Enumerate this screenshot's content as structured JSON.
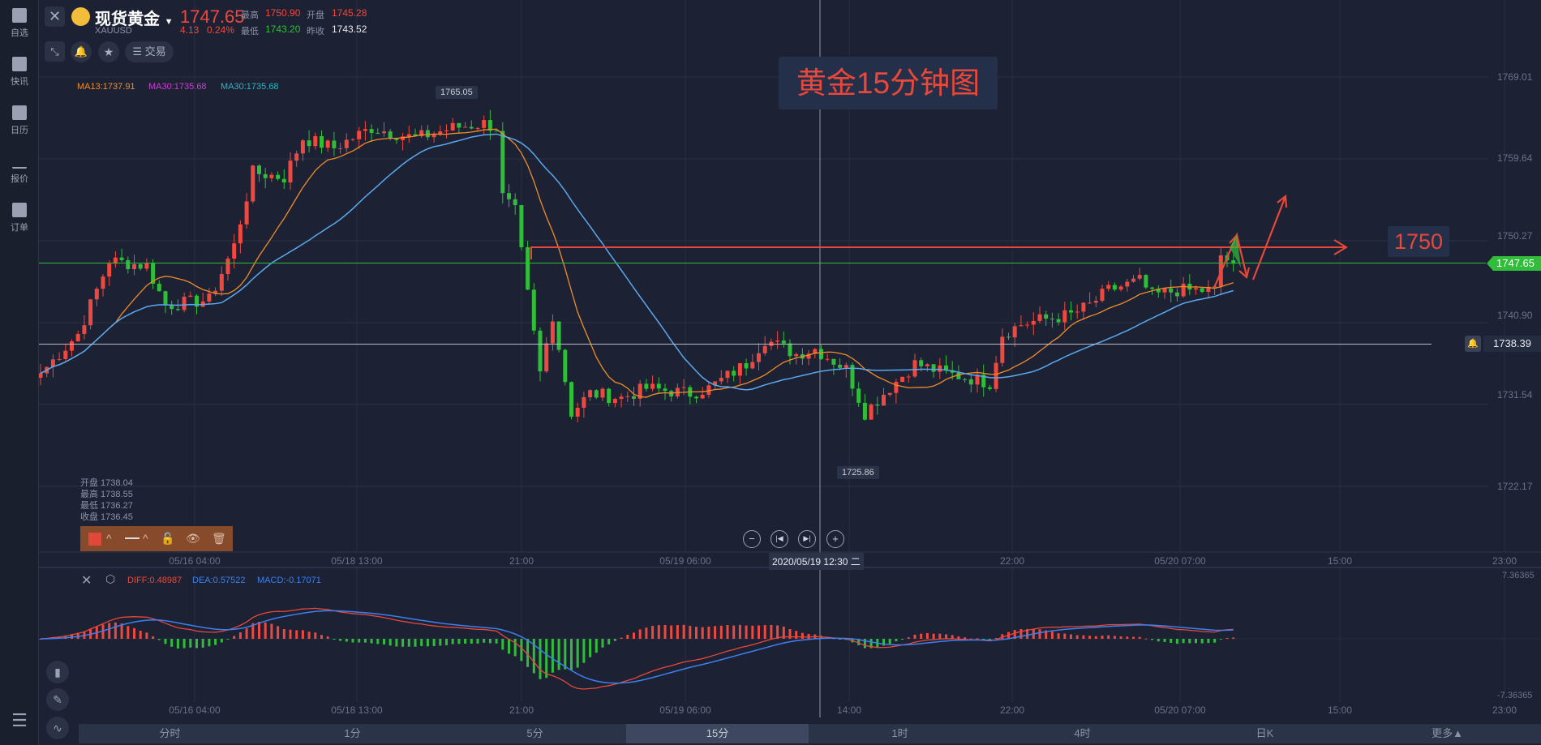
{
  "sidebar": {
    "items": [
      {
        "label": "自选",
        "icon": "bookmark-plus-icon"
      },
      {
        "label": "快讯",
        "icon": "news-list-icon"
      },
      {
        "label": "日历",
        "icon": "calendar-icon"
      },
      {
        "label": "报价",
        "icon": "chart-line-icon"
      },
      {
        "label": "订单",
        "icon": "clipboard-icon"
      }
    ]
  },
  "header": {
    "name": "现货黄金",
    "symbol": "XAUUSD",
    "price": "1747.65",
    "change": "4.13",
    "change_pct": "0.24%",
    "high_label": "最高",
    "high": "1750.90",
    "open_label": "开盘",
    "open": "1745.28",
    "low_label": "最低",
    "low": "1743.20",
    "prev_label": "昨收",
    "prev": "1743.52",
    "trade_label": "交易"
  },
  "ma": {
    "ma13": "MA13:1737.91",
    "ma30a": "MA30:1735.68",
    "ma30b": "MA30:1735.68"
  },
  "annotation": {
    "title": "黄金15分钟图",
    "level": "1750"
  },
  "labels": {
    "max": "1765.05",
    "min": "1725.86"
  },
  "y_axis": [
    "1769.01",
    "1759.64",
    "1750.27",
    "1740.90",
    "1731.54",
    "1722.17"
  ],
  "current_price": "1747.65",
  "alert_price": "1738.39",
  "ohlc": {
    "open": "开盘 1738.04",
    "high": "最高 1738.55",
    "low": "最低 1736.27",
    "close": "收盘 1736.45"
  },
  "time_axis": [
    "05/16 04:00",
    "05/18 13:00",
    "21:00",
    "05/19 06:00",
    "22:00",
    "05/20 07:00",
    "15:00",
    "23:00"
  ],
  "crosshair_time": "2020/05/19 12:30 二",
  "macd": {
    "diff": "DIFF:0.48987",
    "dea": "DEA:0.57522",
    "macd": "MACD:-0.17071",
    "max": "7.36365",
    "min": "-7.36365",
    "time_axis": [
      "05/16 04:00",
      "05/18 13:00",
      "21:00",
      "05/19 06:00",
      "14:00",
      "22:00",
      "05/20 07:00",
      "15:00",
      "23:00"
    ]
  },
  "tabs": [
    "分时",
    "1分",
    "5分",
    "15分",
    "1时",
    "4时",
    "日K",
    "更多▲"
  ],
  "active_tab": "15分",
  "colors": {
    "up": "#f0483e",
    "down": "#2fbd3a",
    "ma13": "#f28c28",
    "ma30": "#5aa8ef",
    "bg": "#1c2233"
  },
  "chart_data": {
    "type": "candlestick",
    "interval": "15m",
    "price_path": [
      [
        0,
        1735.1
      ],
      [
        6,
        1739.6
      ],
      [
        11,
        1748
      ],
      [
        17,
        1747.4
      ],
      [
        20,
        1742.9
      ],
      [
        27,
        1743.5
      ],
      [
        31,
        1749.7
      ],
      [
        34,
        1758.1
      ],
      [
        39,
        1757.5
      ],
      [
        42,
        1762
      ],
      [
        47,
        1760.9
      ],
      [
        53,
        1763.2
      ],
      [
        60,
        1762
      ],
      [
        66,
        1763.2
      ],
      [
        71,
        1763.7
      ],
      [
        73,
        1763.2
      ],
      [
        74,
        1755.3
      ],
      [
        76,
        1753.6
      ],
      [
        78,
        1744.1
      ],
      [
        80,
        1735.1
      ],
      [
        82,
        1741.8
      ],
      [
        85,
        1730.6
      ],
      [
        88,
        1732.8
      ],
      [
        93,
        1732.3
      ],
      [
        97,
        1733.4
      ],
      [
        104,
        1732.8
      ],
      [
        107,
        1733.4
      ],
      [
        113,
        1736.2
      ],
      [
        116,
        1739
      ],
      [
        121,
        1737.3
      ],
      [
        124,
        1737.9
      ],
      [
        129,
        1735.6
      ],
      [
        132,
        1730.6
      ],
      [
        135,
        1732.8
      ],
      [
        140,
        1736.2
      ],
      [
        145,
        1735.1
      ],
      [
        149,
        1734.5
      ],
      [
        152,
        1734
      ],
      [
        154,
        1739.6
      ],
      [
        157,
        1740.7
      ],
      [
        160,
        1741.2
      ],
      [
        165,
        1741.8
      ],
      [
        168,
        1742.9
      ],
      [
        171,
        1744.6
      ],
      [
        176,
        1745.7
      ],
      [
        178,
        1744
      ],
      [
        182,
        1744.6
      ],
      [
        188,
        1744.6
      ],
      [
        189,
        1748.6
      ],
      [
        191,
        1747.65
      ]
    ],
    "ylim": [
      1722.17,
      1769.01
    ]
  }
}
